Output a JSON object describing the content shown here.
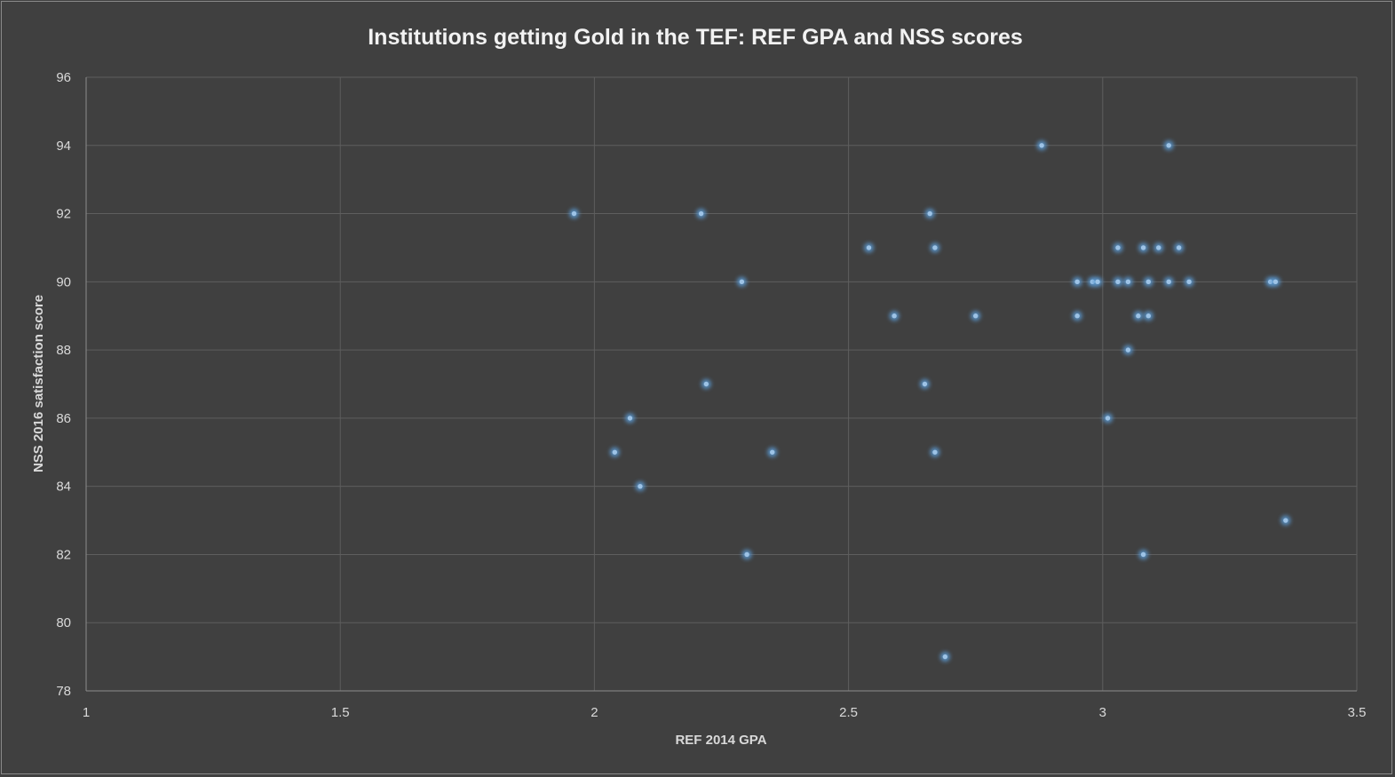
{
  "chart_data": {
    "type": "scatter",
    "title": "Institutions getting Gold in the TEF: REF GPA and NSS scores",
    "xlabel": "REF 2014 GPA",
    "ylabel": "NSS 2016 satisfaction score",
    "xlim": [
      1,
      3.5
    ],
    "ylim": [
      78,
      96
    ],
    "xticks": [
      1,
      1.5,
      2,
      2.5,
      3,
      3.5
    ],
    "yticks": [
      78,
      80,
      82,
      84,
      86,
      88,
      90,
      92,
      94,
      96
    ],
    "grid": true,
    "legend": "none",
    "marker_color": "#9dc3e6",
    "glow_color": "#5b9bd5",
    "points": [
      {
        "x": 1.96,
        "y": 92
      },
      {
        "x": 2.21,
        "y": 92
      },
      {
        "x": 2.66,
        "y": 92
      },
      {
        "x": 2.88,
        "y": 94
      },
      {
        "x": 3.13,
        "y": 94
      },
      {
        "x": 2.54,
        "y": 91
      },
      {
        "x": 2.67,
        "y": 91
      },
      {
        "x": 3.03,
        "y": 91
      },
      {
        "x": 3.08,
        "y": 91
      },
      {
        "x": 3.11,
        "y": 91
      },
      {
        "x": 3.15,
        "y": 91
      },
      {
        "x": 2.29,
        "y": 90
      },
      {
        "x": 2.95,
        "y": 90
      },
      {
        "x": 2.98,
        "y": 90
      },
      {
        "x": 2.99,
        "y": 90
      },
      {
        "x": 3.03,
        "y": 90
      },
      {
        "x": 3.05,
        "y": 90
      },
      {
        "x": 3.09,
        "y": 90
      },
      {
        "x": 3.13,
        "y": 90
      },
      {
        "x": 3.17,
        "y": 90
      },
      {
        "x": 3.33,
        "y": 90
      },
      {
        "x": 3.34,
        "y": 90
      },
      {
        "x": 2.59,
        "y": 89
      },
      {
        "x": 2.75,
        "y": 89
      },
      {
        "x": 2.95,
        "y": 89
      },
      {
        "x": 3.07,
        "y": 89
      },
      {
        "x": 3.09,
        "y": 89
      },
      {
        "x": 3.05,
        "y": 88
      },
      {
        "x": 2.22,
        "y": 87
      },
      {
        "x": 2.65,
        "y": 87
      },
      {
        "x": 2.07,
        "y": 86
      },
      {
        "x": 3.01,
        "y": 86
      },
      {
        "x": 2.04,
        "y": 85
      },
      {
        "x": 2.35,
        "y": 85
      },
      {
        "x": 2.67,
        "y": 85
      },
      {
        "x": 2.09,
        "y": 84
      },
      {
        "x": 3.36,
        "y": 83
      },
      {
        "x": 2.3,
        "y": 82
      },
      {
        "x": 3.08,
        "y": 82
      },
      {
        "x": 2.69,
        "y": 79
      }
    ]
  }
}
